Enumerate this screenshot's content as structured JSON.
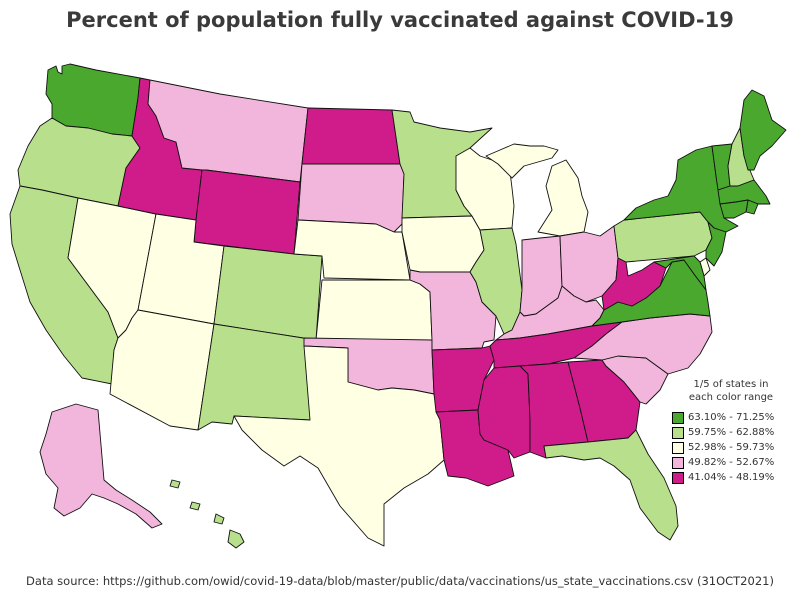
{
  "title": "Percent of population fully vaccinated against COVID-19",
  "source": "Data source: https://github.com/owid/covid-19-data/blob/master/public/data/vaccinations/us_state_vaccinations.csv (31OCT2021)",
  "legend": {
    "note_line1": "1/5 of states in",
    "note_line2": "each color range",
    "classes": [
      {
        "id": "c1",
        "label": "63.10% - 71.25%",
        "color": "#4aa82e"
      },
      {
        "id": "c2",
        "label": "59.75% - 62.88%",
        "color": "#b8df8c"
      },
      {
        "id": "c3",
        "label": "52.98% - 59.73%",
        "color": "#ffffe4"
      },
      {
        "id": "c4",
        "label": "49.82% - 52.67%",
        "color": "#f2b6dc"
      },
      {
        "id": "c5",
        "label": "41.04% - 48.19%",
        "color": "#d01c8b"
      }
    ]
  },
  "states": [
    {
      "abbr": "WA",
      "class": "c1"
    },
    {
      "abbr": "OR",
      "class": "c2"
    },
    {
      "abbr": "CA",
      "class": "c2"
    },
    {
      "abbr": "NV",
      "class": "c3"
    },
    {
      "abbr": "ID",
      "class": "c5"
    },
    {
      "abbr": "MT",
      "class": "c4"
    },
    {
      "abbr": "WY",
      "class": "c5"
    },
    {
      "abbr": "UT",
      "class": "c3"
    },
    {
      "abbr": "AZ",
      "class": "c3"
    },
    {
      "abbr": "CO",
      "class": "c2"
    },
    {
      "abbr": "NM",
      "class": "c2"
    },
    {
      "abbr": "ND",
      "class": "c5"
    },
    {
      "abbr": "SD",
      "class": "c4"
    },
    {
      "abbr": "NE",
      "class": "c3"
    },
    {
      "abbr": "KS",
      "class": "c3"
    },
    {
      "abbr": "OK",
      "class": "c4"
    },
    {
      "abbr": "TX",
      "class": "c3"
    },
    {
      "abbr": "MN",
      "class": "c2"
    },
    {
      "abbr": "IA",
      "class": "c3"
    },
    {
      "abbr": "MO",
      "class": "c4"
    },
    {
      "abbr": "AR",
      "class": "c5"
    },
    {
      "abbr": "LA",
      "class": "c5"
    },
    {
      "abbr": "WI",
      "class": "c3"
    },
    {
      "abbr": "IL",
      "class": "c2"
    },
    {
      "abbr": "MI",
      "class": "c3"
    },
    {
      "abbr": "IN",
      "class": "c4"
    },
    {
      "abbr": "OH",
      "class": "c4"
    },
    {
      "abbr": "KY",
      "class": "c4"
    },
    {
      "abbr": "TN",
      "class": "c5"
    },
    {
      "abbr": "MS",
      "class": "c5"
    },
    {
      "abbr": "AL",
      "class": "c5"
    },
    {
      "abbr": "GA",
      "class": "c5"
    },
    {
      "abbr": "FL",
      "class": "c2"
    },
    {
      "abbr": "SC",
      "class": "c4"
    },
    {
      "abbr": "NC",
      "class": "c4"
    },
    {
      "abbr": "VA",
      "class": "c1"
    },
    {
      "abbr": "WV",
      "class": "c5"
    },
    {
      "abbr": "PA",
      "class": "c2"
    },
    {
      "abbr": "NY",
      "class": "c1"
    },
    {
      "abbr": "VT",
      "class": "c1"
    },
    {
      "abbr": "NH",
      "class": "c2"
    },
    {
      "abbr": "ME",
      "class": "c1"
    },
    {
      "abbr": "MA",
      "class": "c1"
    },
    {
      "abbr": "RI",
      "class": "c1"
    },
    {
      "abbr": "CT",
      "class": "c1"
    },
    {
      "abbr": "NJ",
      "class": "c1"
    },
    {
      "abbr": "DE",
      "class": "c3"
    },
    {
      "abbr": "MD",
      "class": "c1"
    },
    {
      "abbr": "AK",
      "class": "c4"
    },
    {
      "abbr": "HI",
      "class": "c2"
    }
  ]
}
